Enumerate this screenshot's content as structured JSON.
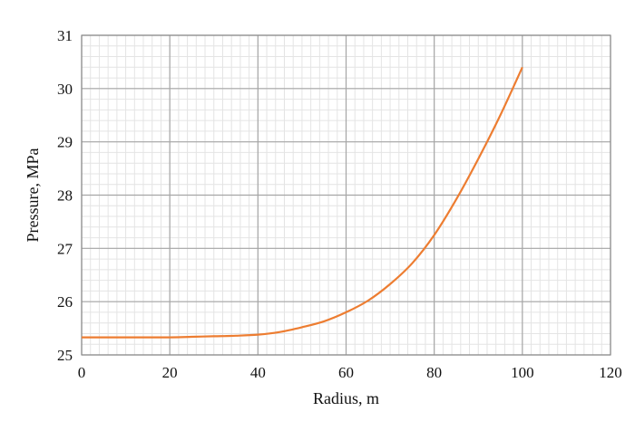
{
  "chart_data": {
    "type": "line",
    "xlabel": "Radius, m",
    "ylabel": "Pressure, MPa",
    "xlim": [
      0,
      120
    ],
    "ylim": [
      25,
      31
    ],
    "x_ticks": [
      0,
      20,
      40,
      60,
      80,
      100,
      120
    ],
    "y_ticks": [
      25,
      26,
      27,
      28,
      29,
      30,
      31
    ],
    "x_tick_labels": [
      "0",
      "20",
      "40",
      "60",
      "80",
      "100",
      "120"
    ],
    "y_tick_labels": [
      "25",
      "26",
      "27",
      "28",
      "29",
      "30",
      "31"
    ],
    "grid": true,
    "minor_grid": true,
    "series": [
      {
        "color": "#ed7d31",
        "x": [
          0,
          10,
          20,
          25,
          30,
          35,
          40,
          45,
          50,
          55,
          60,
          65,
          70,
          75,
          80,
          85,
          90,
          95,
          100
        ],
        "y": [
          25.33,
          25.33,
          25.33,
          25.34,
          25.35,
          25.36,
          25.38,
          25.43,
          25.52,
          25.63,
          25.8,
          26.02,
          26.33,
          26.72,
          27.25,
          27.92,
          28.68,
          29.5,
          30.4
        ]
      }
    ]
  }
}
